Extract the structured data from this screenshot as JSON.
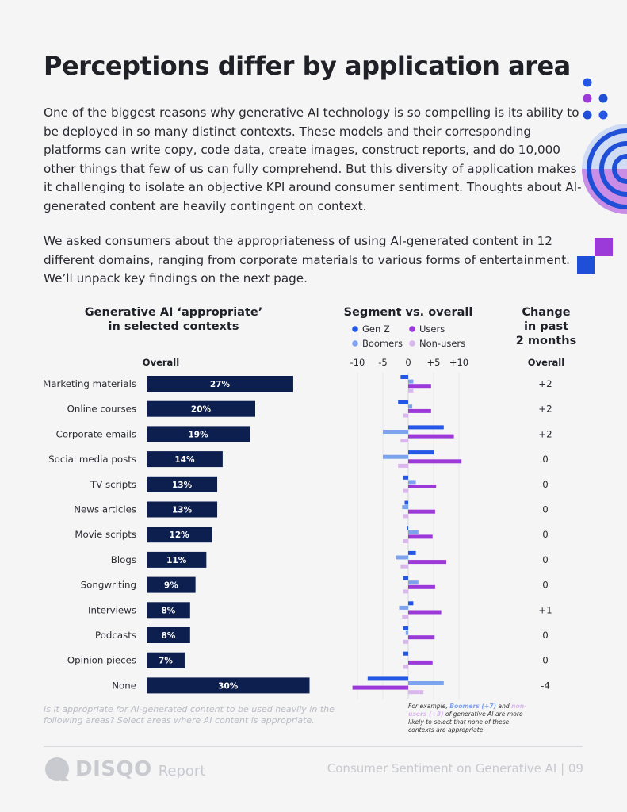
{
  "page": {
    "title": "Perceptions differ by application area",
    "paragraph1": "One of the biggest reasons why generative AI technology is so compelling is its ability to be deployed in so many distinct contexts. These models and their corresponding platforms can write copy, code data, create images, construct reports, and do 10,000 other things that few of us can fully comprehend. But this diversity of application makes it challenging to isolate an objective KPI around consumer sentiment. Thoughts about AI-generated content are heavily contingent on context.",
    "paragraph2": "We asked consumers about the appropriateness of using AI-generated content in 12 different domains, ranging from corporate materials to various forms of entertainment. We’ll unpack key findings on the next page.",
    "footnote": "Is it appropriate for AI-generated content to be used heavily in the following areas? Select areas where AI content is appropriate.",
    "side_note_prefix": "For example,",
    "side_note_boomers": "Boomers (+7)",
    "side_note_and": "and",
    "side_note_nonusers": "non-users (+3)",
    "side_note_suffix": "of generative AI are more likely to select that none of these contexts are appropriate",
    "footer_brand": "DISQO",
    "footer_report": "Report",
    "footer_right": "Consumer Sentiment on Generative AI  |  09"
  },
  "colors": {
    "overall_bar": "#0d1f4f",
    "gen_z": "#2457e6",
    "boomers": "#7ea3ee",
    "users": "#9b3ad8",
    "non_users": "#d9b6ec"
  },
  "chart_data": [
    {
      "type": "bar",
      "title": "Generative AI ‘appropriate’ in selected contexts",
      "column_label": "Overall",
      "categories": [
        "Marketing materials",
        "Online courses",
        "Corporate emails",
        "Social media posts",
        "TV scripts",
        "News articles",
        "Movie scripts",
        "Blogs",
        "Songwriting",
        "Interviews",
        "Podcasts",
        "Opinion pieces",
        "None"
      ],
      "values": [
        27,
        20,
        19,
        14,
        13,
        13,
        12,
        11,
        9,
        8,
        8,
        7,
        30
      ],
      "value_labels": [
        "27%",
        "20%",
        "19%",
        "14%",
        "13%",
        "13%",
        "12%",
        "11%",
        "9%",
        "8%",
        "8%",
        "7%",
        "30%"
      ]
    },
    {
      "type": "bar",
      "title": "Segment vs. overall",
      "legend": [
        "Gen Z",
        "Users",
        "Boomers",
        "Non-users"
      ],
      "xlim": [
        -10,
        10
      ],
      "tick_values": [
        -10,
        -5,
        0,
        5,
        10
      ],
      "tick_labels": [
        "-10",
        "-5",
        "0",
        "+5",
        "+10"
      ],
      "categories": [
        "Marketing materials",
        "Online courses",
        "Corporate emails",
        "Social media posts",
        "TV scripts",
        "News articles",
        "Movie scripts",
        "Blogs",
        "Songwriting",
        "Interviews",
        "Podcasts",
        "Opinion pieces",
        "None"
      ],
      "series": [
        {
          "name": "Gen Z",
          "values": [
            -1.5,
            -2,
            7,
            5,
            -1,
            -0.7,
            -0.3,
            1.5,
            -1,
            1,
            -1,
            -1,
            -8
          ]
        },
        {
          "name": "Boomers",
          "values": [
            1,
            0.8,
            -5,
            -5,
            1.5,
            -1.2,
            2,
            -2.5,
            2,
            -1.8,
            -0.5,
            0,
            7
          ]
        },
        {
          "name": "Users",
          "values": [
            4.5,
            4.5,
            9,
            10.5,
            5.5,
            5.3,
            4.8,
            7.5,
            5.3,
            6.5,
            5.2,
            4.8,
            -11
          ]
        },
        {
          "name": "Non-users",
          "values": [
            1,
            -1,
            -1.5,
            -2,
            -1,
            -1,
            -1,
            -1.5,
            -1,
            -1.2,
            -1,
            -1,
            3
          ]
        }
      ]
    },
    {
      "type": "table",
      "title": "Change in past 2 months",
      "column_label": "Overall",
      "categories": [
        "Marketing materials",
        "Online courses",
        "Corporate emails",
        "Social media posts",
        "TV scripts",
        "News articles",
        "Movie scripts",
        "Blogs",
        "Songwriting",
        "Interviews",
        "Podcasts",
        "Opinion pieces",
        "None"
      ],
      "values": [
        "+2",
        "+2",
        "+2",
        "0",
        "0",
        "0",
        "0",
        "0",
        "0",
        "+1",
        "0",
        "0",
        "-4"
      ]
    }
  ]
}
